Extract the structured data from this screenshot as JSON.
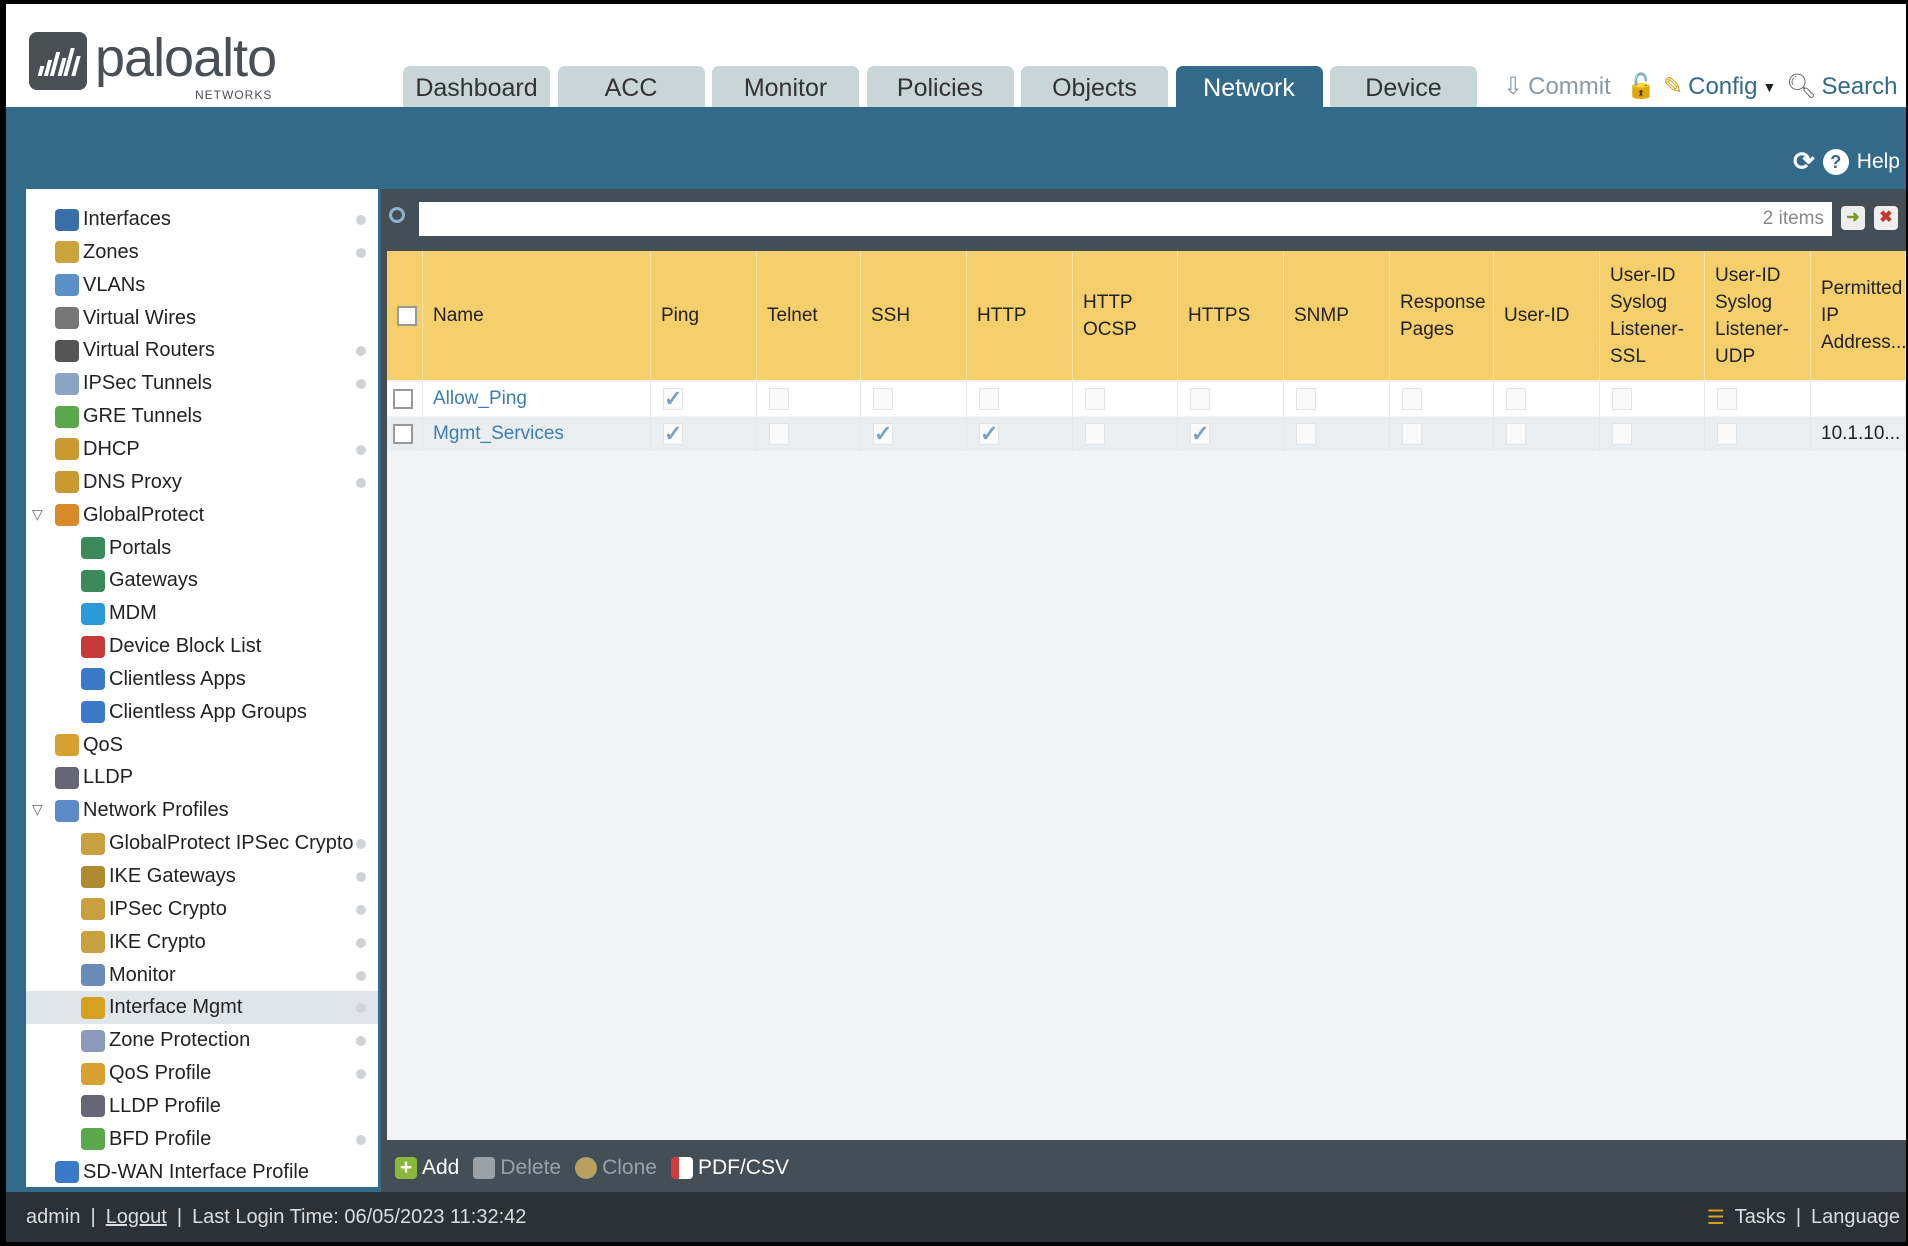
{
  "brand": {
    "name": "paloalto",
    "sub": "NETWORKS"
  },
  "tabs": [
    "Dashboard",
    "ACC",
    "Monitor",
    "Policies",
    "Objects",
    "Network",
    "Device"
  ],
  "active_tab": "Network",
  "header_actions": {
    "commit": "Commit",
    "config": "Config",
    "search": "Search"
  },
  "help": "Help",
  "sidebar": [
    {
      "label": "Interfaces",
      "level": 0,
      "dot": true,
      "color": "#3a6ea8"
    },
    {
      "label": "Zones",
      "level": 0,
      "dot": true,
      "color": "#c9a43a"
    },
    {
      "label": "VLANs",
      "level": 0,
      "dot": false,
      "color": "#5a8fc8"
    },
    {
      "label": "Virtual Wires",
      "level": 0,
      "dot": false,
      "color": "#777"
    },
    {
      "label": "Virtual Routers",
      "level": 0,
      "dot": true,
      "color": "#555"
    },
    {
      "label": "IPSec Tunnels",
      "level": 0,
      "dot": true,
      "color": "#8aa4c4"
    },
    {
      "label": "GRE Tunnels",
      "level": 0,
      "dot": false,
      "color": "#5aa84a"
    },
    {
      "label": "DHCP",
      "level": 0,
      "dot": true,
      "color": "#c89a30"
    },
    {
      "label": "DNS Proxy",
      "level": 0,
      "dot": true,
      "color": "#c89a30"
    },
    {
      "label": "GlobalProtect",
      "level": 0,
      "dot": false,
      "color": "#d88a2a",
      "expanded": true
    },
    {
      "label": "Portals",
      "level": 1,
      "dot": false,
      "color": "#3a8a5a"
    },
    {
      "label": "Gateways",
      "level": 1,
      "dot": false,
      "color": "#3a8a5a"
    },
    {
      "label": "MDM",
      "level": 1,
      "dot": false,
      "color": "#2a9ad8"
    },
    {
      "label": "Device Block List",
      "level": 1,
      "dot": false,
      "color": "#c83a3a"
    },
    {
      "label": "Clientless Apps",
      "level": 1,
      "dot": false,
      "color": "#3a7ac8"
    },
    {
      "label": "Clientless App Groups",
      "level": 1,
      "dot": false,
      "color": "#3a7ac8"
    },
    {
      "label": "QoS",
      "level": 0,
      "dot": false,
      "color": "#d8a030"
    },
    {
      "label": "LLDP",
      "level": 0,
      "dot": false,
      "color": "#667"
    },
    {
      "label": "Network Profiles",
      "level": 0,
      "dot": false,
      "color": "#5a8ac8",
      "expanded": true
    },
    {
      "label": "GlobalProtect IPSec Crypto",
      "level": 1,
      "dot": true,
      "color": "#c8a040"
    },
    {
      "label": "IKE Gateways",
      "level": 1,
      "dot": true,
      "color": "#b08a30"
    },
    {
      "label": "IPSec Crypto",
      "level": 1,
      "dot": true,
      "color": "#c8a040"
    },
    {
      "label": "IKE Crypto",
      "level": 1,
      "dot": true,
      "color": "#c8a040"
    },
    {
      "label": "Monitor",
      "level": 1,
      "dot": true,
      "color": "#6a8ab8"
    },
    {
      "label": "Interface Mgmt",
      "level": 1,
      "dot": true,
      "color": "#d8a020",
      "selected": true
    },
    {
      "label": "Zone Protection",
      "level": 1,
      "dot": true,
      "color": "#8a9ab8"
    },
    {
      "label": "QoS Profile",
      "level": 1,
      "dot": true,
      "color": "#d8a030"
    },
    {
      "label": "LLDP Profile",
      "level": 1,
      "dot": false,
      "color": "#667"
    },
    {
      "label": "BFD Profile",
      "level": 1,
      "dot": true,
      "color": "#5aa84a"
    },
    {
      "label": "SD-WAN Interface Profile",
      "level": 0,
      "dot": false,
      "color": "#3a7ac8"
    }
  ],
  "search": {
    "placeholder": "",
    "count": "2 items"
  },
  "table": {
    "columns": [
      "Name",
      "Ping",
      "Telnet",
      "SSH",
      "HTTP",
      "HTTP OCSP",
      "HTTPS",
      "SNMP",
      "Response Pages",
      "User-ID",
      "User-ID Syslog Listener-SSL",
      "User-ID Syslog Listener-UDP",
      "Permitted IP Address..."
    ],
    "rows": [
      {
        "name": "Allow_Ping",
        "checks": [
          true,
          false,
          false,
          false,
          false,
          false,
          false,
          false,
          false,
          false,
          false
        ],
        "permitted": ""
      },
      {
        "name": "Mgmt_Services",
        "checks": [
          true,
          false,
          true,
          true,
          false,
          true,
          false,
          false,
          false,
          false,
          false
        ],
        "permitted": "10.1.10..."
      }
    ]
  },
  "toolbar": {
    "add": "Add",
    "delete": "Delete",
    "clone": "Clone",
    "pdf": "PDF/CSV"
  },
  "footer": {
    "user": "admin",
    "logout": "Logout",
    "last_login": "Last Login Time: 06/05/2023 11:32:42",
    "tasks": "Tasks",
    "language": "Language"
  }
}
